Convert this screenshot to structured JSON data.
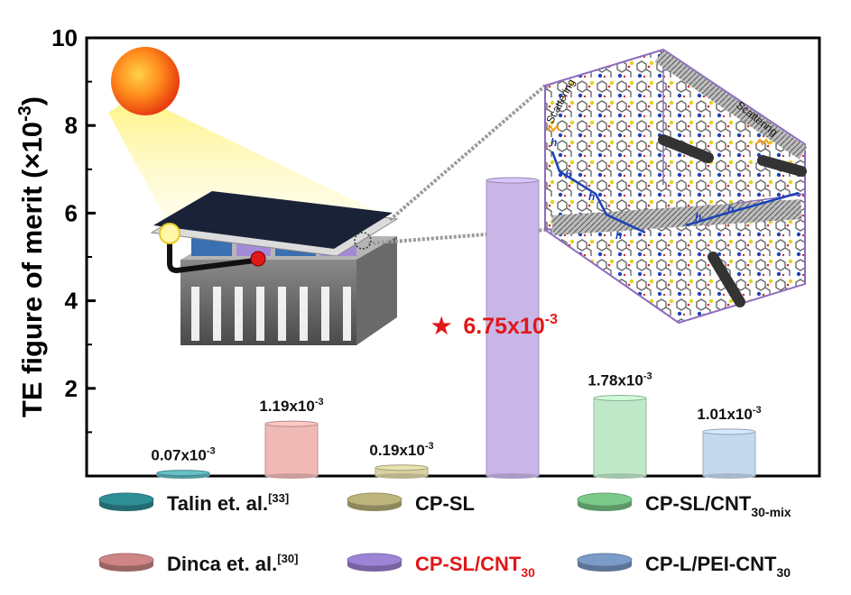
{
  "chart_data": {
    "type": "bar",
    "ylabel": "TE figure of merit (×10",
    "ylabel_exp": "-3",
    "ylabel_tail": ")",
    "ylim": [
      0,
      10
    ],
    "yticks": [
      "2",
      "4",
      "6",
      "8",
      "10"
    ],
    "grid": false,
    "legend_position": "bottom",
    "bars": [
      {
        "label_base": "0.07x10",
        "label_exp": "-3",
        "value": 0.07,
        "color": "#5fb3b8"
      },
      {
        "label_base": "1.19x10",
        "label_exp": "-3",
        "value": 1.19,
        "color": "#f0b9b6"
      },
      {
        "label_base": "0.19x10",
        "label_exp": "-3",
        "value": 0.19,
        "color": "#d8d2a2"
      },
      {
        "label_base": "6.75x10",
        "label_exp": "-3",
        "value": 6.75,
        "color": "#c9b6e8",
        "highlight": true
      },
      {
        "label_base": "1.78x10",
        "label_exp": "-3",
        "value": 1.78,
        "color": "#bfe8c8"
      },
      {
        "label_base": "1.01x10",
        "label_exp": "-3",
        "value": 1.01,
        "color": "#c4d8ee"
      }
    ],
    "highlight_annotation": {
      "star": "★",
      "base": "6.75x10",
      "exp": "-3",
      "color": "#e01818"
    },
    "legend": [
      {
        "base": "Talin et. al.",
        "sup": "[33]",
        "sub": "",
        "color": "#2f8f96",
        "text_color": "#111111"
      },
      {
        "base": "CP-SL",
        "sup": "",
        "sub": "",
        "color": "#bdb47c",
        "text_color": "#111111"
      },
      {
        "base": "CP-SL/CNT",
        "sup": "",
        "sub": "30-mix",
        "color": "#7cc98a",
        "text_color": "#111111"
      },
      {
        "base": "Dinca et. al.",
        "sup": "[30]",
        "sub": "",
        "color": "#cf8585",
        "text_color": "#111111"
      },
      {
        "base": "CP-SL/CNT",
        "sup": "",
        "sub": "30",
        "color": "#9d84d6",
        "text_color": "#e01818"
      },
      {
        "base": "CP-L/PEI-CNT",
        "sup": "",
        "sub": "30",
        "color": "#7b9cc8",
        "text_color": "#111111"
      }
    ],
    "inset": {
      "scattering_label": "Scattering",
      "carrier_label": "h"
    }
  }
}
